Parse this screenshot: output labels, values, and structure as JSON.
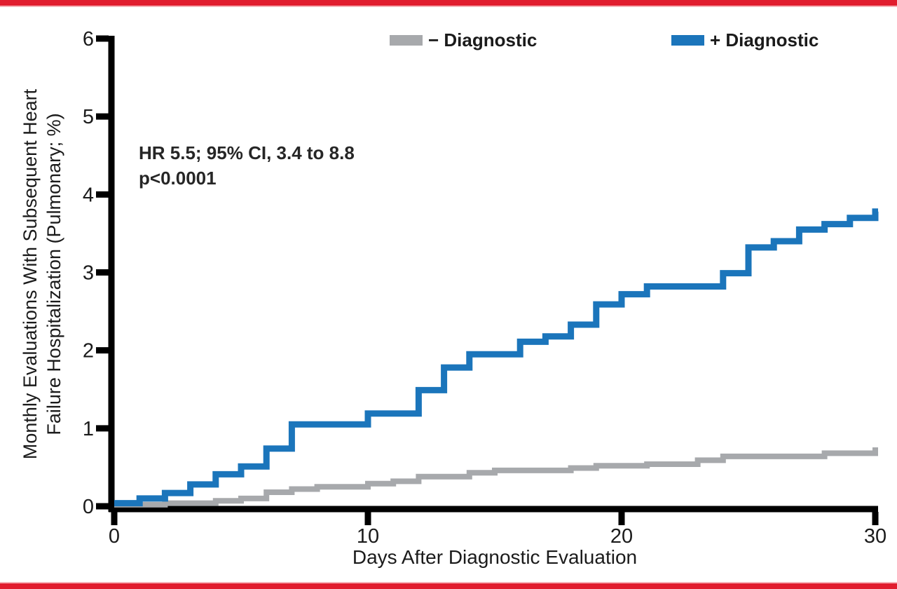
{
  "figure": {
    "border_color": "#e11d2e",
    "background_color": "#ffffff",
    "text_color": "#1b1b1b"
  },
  "legend": {
    "entries": [
      {
        "label": "− Diagnostic",
        "color": "#a7a9ac"
      },
      {
        "label": "+ Diagnostic",
        "color": "#1b75bb"
      }
    ]
  },
  "annotation": {
    "line1": "HR 5.5; 95% CI, 3.4 to 8.8",
    "line2": "p<0.0001"
  },
  "chart_data": {
    "type": "line",
    "subtype": "step-after-cumulative-incidence",
    "title": "",
    "xlabel": "Days After Diagnostic Evaluation",
    "ylabel": "Monthly Evaluations With Subsequent Heart Failure Hospitalization (Pulmonary; %)",
    "ylabel_line1": "Monthly Evaluations With Subsequent Heart",
    "ylabel_line2": "Failure Hospitalization (Pulmonary; %)",
    "xlim": [
      0,
      30
    ],
    "ylim": [
      0,
      6
    ],
    "x_ticks": [
      0,
      10,
      20,
      30
    ],
    "y_ticks": [
      0,
      1,
      2,
      3,
      4,
      5,
      6
    ],
    "grid": false,
    "legend_position": "top",
    "stats": {
      "hazard_ratio": "HR 5.5; 95% CI, 3.4 to 8.8",
      "p_value": "p<0.0001"
    },
    "series": [
      {
        "name": "− Diagnostic",
        "color": "#a7a9ac",
        "stroke_width": 8,
        "points": [
          [
            0,
            0.02
          ],
          [
            2,
            0.04
          ],
          [
            4,
            0.07
          ],
          [
            5,
            0.1
          ],
          [
            6,
            0.18
          ],
          [
            7,
            0.22
          ],
          [
            8,
            0.25
          ],
          [
            10,
            0.29
          ],
          [
            11,
            0.32
          ],
          [
            12,
            0.38
          ],
          [
            14,
            0.43
          ],
          [
            15,
            0.46
          ],
          [
            18,
            0.49
          ],
          [
            19,
            0.52
          ],
          [
            21,
            0.54
          ],
          [
            23,
            0.59
          ],
          [
            24,
            0.64
          ],
          [
            28,
            0.68
          ],
          [
            30,
            0.72
          ]
        ]
      },
      {
        "name": "+ Diagnostic",
        "color": "#1b75bb",
        "stroke_width": 9,
        "points": [
          [
            0,
            0.04
          ],
          [
            1,
            0.1
          ],
          [
            2,
            0.17
          ],
          [
            3,
            0.28
          ],
          [
            4,
            0.41
          ],
          [
            5,
            0.51
          ],
          [
            6,
            0.74
          ],
          [
            7,
            1.05
          ],
          [
            10,
            1.19
          ],
          [
            12,
            1.49
          ],
          [
            13,
            1.78
          ],
          [
            14,
            1.95
          ],
          [
            16,
            2.11
          ],
          [
            17,
            2.18
          ],
          [
            18,
            2.33
          ],
          [
            19,
            2.59
          ],
          [
            20,
            2.72
          ],
          [
            21,
            2.82
          ],
          [
            24,
            2.99
          ],
          [
            25,
            3.32
          ],
          [
            26,
            3.4
          ],
          [
            27,
            3.55
          ],
          [
            28,
            3.62
          ],
          [
            29,
            3.7
          ],
          [
            30,
            3.78
          ]
        ]
      }
    ]
  }
}
